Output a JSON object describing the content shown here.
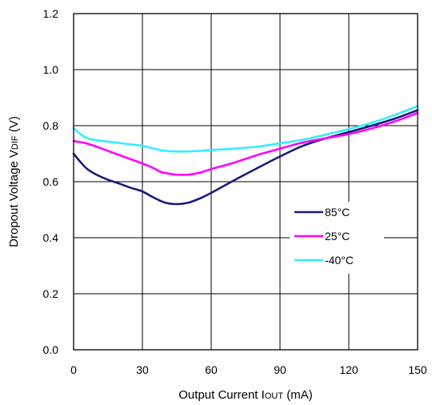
{
  "chart_data": {
    "type": "line",
    "title": "",
    "xlabel_parts": [
      "Output Current I",
      "OUT",
      " (mA)"
    ],
    "ylabel_parts": [
      "Dropout Voltage V",
      "DIF",
      " (V)"
    ],
    "xlim": [
      0,
      150
    ],
    "ylim": [
      0,
      1.2
    ],
    "x_ticks": [
      "0",
      "30",
      "60",
      "90",
      "120",
      "150"
    ],
    "y_ticks": [
      "0.0",
      "0.2",
      "0.4",
      "0.6",
      "0.8",
      "1.0",
      "1.2"
    ],
    "grid": true,
    "legend_position": "right-center",
    "series": [
      {
        "name": "85°C",
        "color": "#1a1a7a",
        "x": [
          0,
          3,
          6,
          10,
          15,
          20,
          25,
          30,
          35,
          40,
          45,
          50,
          55,
          60,
          70,
          80,
          90,
          100,
          110,
          120,
          130,
          140,
          150
        ],
        "y": [
          0.7,
          0.67,
          0.645,
          0.625,
          0.607,
          0.593,
          0.578,
          0.565,
          0.543,
          0.525,
          0.52,
          0.525,
          0.54,
          0.56,
          0.605,
          0.648,
          0.69,
          0.728,
          0.755,
          0.777,
          0.8,
          0.825,
          0.855
        ]
      },
      {
        "name": "25°C",
        "color": "#ff00ff",
        "x": [
          0,
          5,
          10,
          15,
          20,
          25,
          30,
          35,
          38,
          42,
          45,
          50,
          55,
          60,
          70,
          80,
          90,
          100,
          110,
          120,
          130,
          140,
          150
        ],
        "y": [
          0.745,
          0.738,
          0.725,
          0.71,
          0.695,
          0.68,
          0.665,
          0.648,
          0.635,
          0.628,
          0.625,
          0.625,
          0.632,
          0.645,
          0.668,
          0.695,
          0.718,
          0.74,
          0.755,
          0.77,
          0.79,
          0.815,
          0.845
        ]
      },
      {
        "name": "-40°C",
        "color": "#33eeff",
        "x": [
          0,
          3,
          6,
          10,
          15,
          20,
          25,
          30,
          35,
          40,
          45,
          50,
          55,
          60,
          70,
          80,
          90,
          100,
          110,
          120,
          130,
          140,
          150
        ],
        "y": [
          0.79,
          0.77,
          0.755,
          0.748,
          0.743,
          0.738,
          0.733,
          0.728,
          0.718,
          0.71,
          0.708,
          0.708,
          0.71,
          0.713,
          0.718,
          0.725,
          0.737,
          0.75,
          0.768,
          0.788,
          0.81,
          0.838,
          0.87
        ]
      }
    ]
  }
}
